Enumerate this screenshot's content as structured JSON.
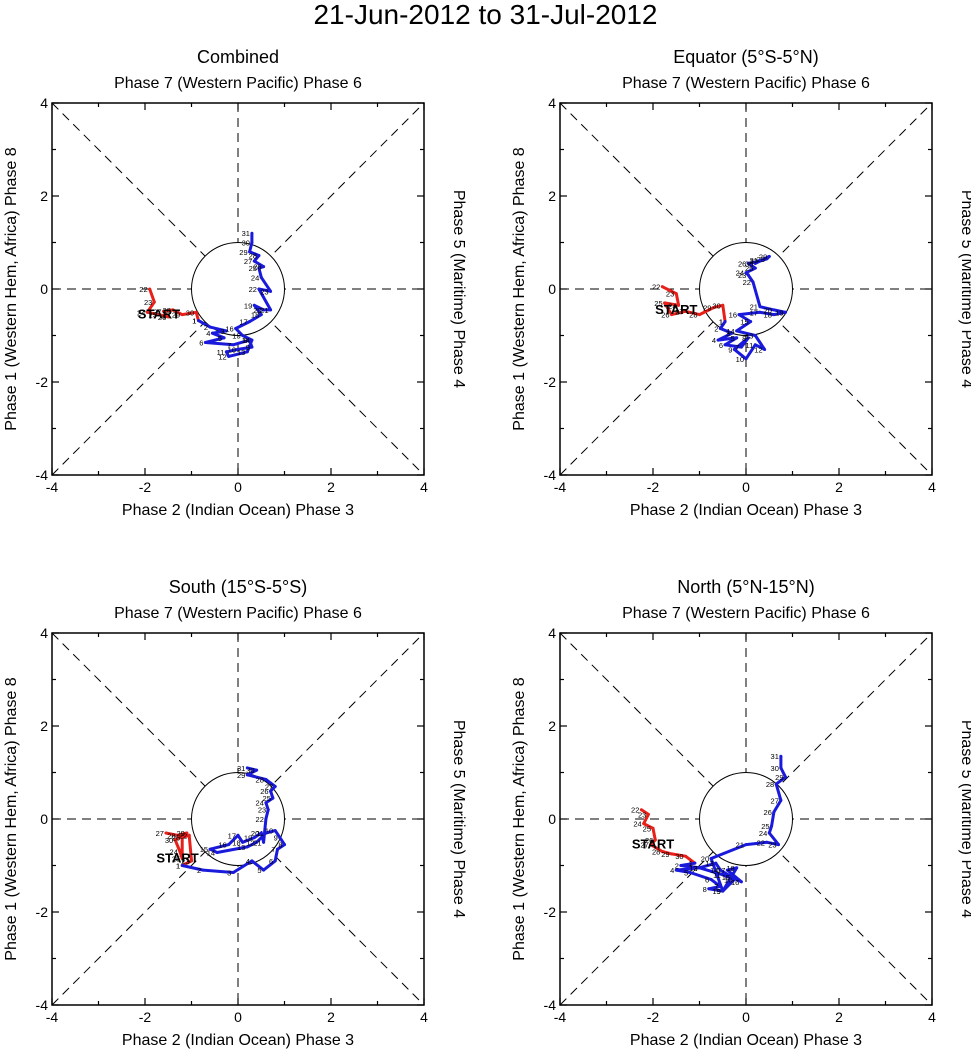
{
  "title": "21-Jun-2012 to 31-Jul-2012",
  "axis_labels": {
    "top": "Phase 7 (Western Pacific) Phase 6",
    "bottom": "Phase 2 (Indian Ocean) Phase 3",
    "left": "Phase 1 (Western Hem, Africa) Phase 8",
    "right": "Phase 5 (Maritime) Phase 4"
  },
  "start_label": "START",
  "colors": {
    "june": "#e8201a",
    "july": "#1a1adc",
    "axes": "#000000"
  },
  "chart_data": [
    {
      "type": "line",
      "title": "Combined",
      "xlim": [
        -4,
        4
      ],
      "ylim": [
        -4,
        4
      ],
      "xticks": [
        "-4",
        "-2",
        "0",
        "2",
        "4"
      ],
      "yticks": [
        "-4",
        "-2",
        "0",
        "2",
        "4"
      ],
      "start_point": [
        -1.7,
        -0.55
      ],
      "series": [
        {
          "name": "June",
          "color": "#e8201a",
          "points": [
            [
              -1.9,
              0.0
            ],
            [
              -1.8,
              -0.28
            ],
            [
              -1.95,
              -0.5
            ],
            [
              -1.7,
              -0.55
            ],
            [
              -1.5,
              -0.6
            ],
            [
              -1.6,
              -0.48
            ],
            [
              -1.4,
              -0.45
            ],
            [
              -1.2,
              -0.55
            ],
            [
              -0.9,
              -0.5
            ],
            [
              -0.85,
              -0.68
            ]
          ],
          "labels": [
            "22",
            "23",
            "24",
            "25",
            "26",
            "27",
            "28",
            "29",
            "30",
            "1"
          ]
        },
        {
          "name": "July",
          "color": "#1a1adc",
          "points": [
            [
              -0.85,
              -0.68
            ],
            [
              -0.6,
              -0.82
            ],
            [
              -0.25,
              -0.9
            ],
            [
              -0.55,
              -0.95
            ],
            [
              -0.3,
              -1.05
            ],
            [
              -0.7,
              -1.15
            ],
            [
              -0.1,
              -1.2
            ],
            [
              0.25,
              -1.1
            ],
            [
              0.3,
              -1.25
            ],
            [
              0.0,
              -1.3
            ],
            [
              -0.25,
              -1.35
            ],
            [
              -0.2,
              -1.45
            ],
            [
              0.2,
              -1.35
            ],
            [
              0.3,
              -1.1
            ],
            [
              0.1,
              -1.0
            ],
            [
              -0.05,
              -0.85
            ],
            [
              0.25,
              -0.7
            ],
            [
              0.5,
              -0.55
            ],
            [
              0.35,
              -0.35
            ],
            [
              0.55,
              -0.45
            ],
            [
              0.7,
              -0.45
            ],
            [
              0.45,
              0.0
            ],
            [
              0.7,
              -0.05
            ],
            [
              0.5,
              0.25
            ],
            [
              0.45,
              0.45
            ],
            [
              0.55,
              0.48
            ],
            [
              0.35,
              0.6
            ],
            [
              0.45,
              0.72
            ],
            [
              0.25,
              0.8
            ],
            [
              0.3,
              1.0
            ],
            [
              0.3,
              1.2
            ]
          ],
          "labels": [
            "1",
            "2",
            "3",
            "4",
            "5",
            "6",
            "7",
            "8",
            "9",
            "10",
            "11",
            "12",
            "13",
            "14",
            "15",
            "16",
            "17",
            "18",
            "19",
            "20",
            "21",
            "22",
            "23",
            "24",
            "25",
            "26",
            "27",
            "28",
            "29",
            "30",
            "31"
          ]
        }
      ]
    },
    {
      "type": "line",
      "title": "Equator (5°S-5°N)",
      "xlim": [
        -4,
        4
      ],
      "ylim": [
        -4,
        4
      ],
      "xticks": [
        "-4",
        "-2",
        "0",
        "2",
        "4"
      ],
      "yticks": [
        "-4",
        "-2",
        "0",
        "2",
        "4"
      ],
      "start_point": [
        -1.5,
        -0.45
      ],
      "series": [
        {
          "name": "June",
          "color": "#e8201a",
          "points": [
            [
              -1.8,
              0.05
            ],
            [
              -1.5,
              -0.1
            ],
            [
              -1.45,
              -0.35
            ],
            [
              -1.75,
              -0.3
            ],
            [
              -1.6,
              -0.55
            ],
            [
              -1.3,
              -0.48
            ],
            [
              -1.0,
              -0.55
            ],
            [
              -0.7,
              -0.4
            ],
            [
              -0.5,
              -0.35
            ],
            [
              -0.45,
              -0.7
            ]
          ],
          "labels": [
            "22",
            "23",
            "24",
            "25",
            "26",
            "27",
            "28",
            "29",
            "30",
            "1"
          ]
        },
        {
          "name": "July",
          "color": "#1a1adc",
          "points": [
            [
              -0.45,
              -0.7
            ],
            [
              -0.55,
              -0.85
            ],
            [
              -0.3,
              -0.95
            ],
            [
              -0.6,
              -1.1
            ],
            [
              -0.2,
              -1.05
            ],
            [
              -0.45,
              -1.2
            ],
            [
              -0.1,
              -1.25
            ],
            [
              0.05,
              -1.05
            ],
            [
              -0.25,
              -1.3
            ],
            [
              0.0,
              -1.5
            ],
            [
              0.2,
              -1.2
            ],
            [
              0.4,
              -1.3
            ],
            [
              0.2,
              -1.0
            ],
            [
              -0.2,
              -0.9
            ],
            [
              0.1,
              -0.7
            ],
            [
              -0.15,
              -0.55
            ],
            [
              0.3,
              -0.5
            ],
            [
              0.6,
              -0.55
            ],
            [
              0.85,
              -0.5
            ],
            [
              0.6,
              -0.45
            ],
            [
              0.3,
              -0.38
            ],
            [
              0.15,
              0.15
            ],
            [
              0.05,
              0.3
            ],
            [
              0.0,
              0.35
            ],
            [
              0.2,
              0.45
            ],
            [
              0.05,
              0.55
            ],
            [
              0.3,
              0.6
            ],
            [
              0.45,
              0.65
            ],
            [
              0.5,
              0.7
            ],
            [
              0.2,
              0.55
            ],
            [
              0.3,
              0.62
            ]
          ],
          "labels": [
            "1",
            "2",
            "3",
            "4",
            "5",
            "6",
            "7",
            "8",
            "9",
            "10",
            "11",
            "12",
            "13",
            "14",
            "15",
            "16",
            "17",
            "18",
            "19",
            "20",
            "21",
            "22",
            "23",
            "24",
            "25",
            "26",
            "27",
            "28",
            "29",
            "30",
            "31"
          ]
        }
      ]
    },
    {
      "type": "line",
      "title": "South (15°S-5°S)",
      "xlim": [
        -4,
        4
      ],
      "ylim": [
        -4,
        4
      ],
      "xticks": [
        "-4",
        "-2",
        "0",
        "2",
        "4"
      ],
      "yticks": [
        "-4",
        "-2",
        "0",
        "2",
        "4"
      ],
      "start_point": [
        -1.3,
        -0.85
      ],
      "series": [
        {
          "name": "June",
          "color": "#e8201a",
          "points": [
            [
              -1.55,
              -0.3
            ],
            [
              -1.3,
              -0.35
            ],
            [
              -1.1,
              -0.3
            ],
            [
              -1.35,
              -0.45
            ],
            [
              -1.25,
              -0.7
            ],
            [
              -1.2,
              -0.85
            ],
            [
              -1.2,
              -0.4
            ],
            [
              -1.05,
              -0.35
            ],
            [
              -1.0,
              -0.9
            ],
            [
              -1.2,
              -1.0
            ]
          ],
          "labels": [
            "27",
            "28",
            "29",
            "30",
            "24",
            "25",
            "26",
            "22",
            "23",
            "1"
          ]
        },
        {
          "name": "July",
          "color": "#1a1adc",
          "points": [
            [
              -1.2,
              -1.0
            ],
            [
              -0.75,
              -1.1
            ],
            [
              -0.1,
              -1.15
            ],
            [
              0.3,
              -0.9
            ],
            [
              0.55,
              -1.1
            ],
            [
              0.8,
              -0.9
            ],
            [
              0.85,
              -0.65
            ],
            [
              1.0,
              -0.55
            ],
            [
              0.9,
              -0.4
            ],
            [
              0.8,
              -0.25
            ],
            [
              0.6,
              -0.3
            ],
            [
              0.4,
              -0.5
            ],
            [
              0.2,
              -0.6
            ],
            [
              -0.45,
              -0.72
            ],
            [
              -0.6,
              -0.65
            ],
            [
              -0.2,
              -0.55
            ],
            [
              0.0,
              -0.35
            ],
            [
              0.1,
              -0.5
            ],
            [
              0.35,
              -0.4
            ],
            [
              0.5,
              -0.3
            ],
            [
              0.55,
              -0.5
            ],
            [
              0.6,
              0.0
            ],
            [
              0.65,
              0.2
            ],
            [
              0.6,
              0.35
            ],
            [
              0.75,
              0.45
            ],
            [
              0.7,
              0.6
            ],
            [
              0.8,
              0.7
            ],
            [
              0.6,
              0.85
            ],
            [
              0.2,
              0.95
            ],
            [
              0.4,
              1.05
            ],
            [
              0.2,
              1.1
            ]
          ],
          "labels": [
            "1",
            "2",
            "3",
            "4",
            "5",
            "6",
            "7",
            "8",
            "9",
            "10",
            "11",
            "12",
            "13",
            "14",
            "15",
            "16",
            "17",
            "18",
            "19",
            "20",
            "21",
            "22",
            "23",
            "24",
            "25",
            "26",
            "27",
            "28",
            "29",
            "30",
            "31"
          ]
        }
      ]
    },
    {
      "type": "line",
      "title": "North (5°N-15°N)",
      "xlim": [
        -4,
        4
      ],
      "ylim": [
        -4,
        4
      ],
      "xticks": [
        "-4",
        "-2",
        "0",
        "2",
        "4"
      ],
      "yticks": [
        "-4",
        "-2",
        "0",
        "2",
        "4"
      ],
      "start_point": [
        -2.0,
        -0.55
      ],
      "series": [
        {
          "name": "June",
          "color": "#e8201a",
          "points": [
            [
              -2.25,
              0.2
            ],
            [
              -2.1,
              0.1
            ],
            [
              -2.2,
              -0.1
            ],
            [
              -2.0,
              -0.2
            ],
            [
              -1.95,
              -0.45
            ],
            [
              -2.05,
              -0.55
            ],
            [
              -1.8,
              -0.7
            ],
            [
              -1.6,
              -0.75
            ],
            [
              -1.3,
              -0.8
            ],
            [
              -1.1,
              -0.95
            ]
          ],
          "labels": [
            "22",
            "23",
            "24",
            "25",
            "26",
            "27",
            "28",
            "29",
            "30",
            "1"
          ]
        },
        {
          "name": "July",
          "color": "#1a1adc",
          "points": [
            [
              -1.1,
              -0.95
            ],
            [
              -1.4,
              -1.0
            ],
            [
              -1.0,
              -1.05
            ],
            [
              -1.5,
              -1.1
            ],
            [
              -1.2,
              -1.15
            ],
            [
              -0.75,
              -1.3
            ],
            [
              -0.55,
              -1.45
            ],
            [
              -0.8,
              -1.5
            ],
            [
              -0.5,
              -1.55
            ],
            [
              -0.25,
              -1.3
            ],
            [
              -0.5,
              -1.2
            ],
            [
              -1.0,
              -1.05
            ],
            [
              -0.65,
              -0.95
            ],
            [
              -0.55,
              -1.1
            ],
            [
              -0.3,
              -1.25
            ],
            [
              -0.1,
              -1.35
            ],
            [
              -0.4,
              -1.1
            ],
            [
              -0.2,
              -1.05
            ],
            [
              -0.5,
              -1.55
            ],
            [
              -0.75,
              -0.85
            ],
            [
              0.0,
              -0.55
            ],
            [
              0.45,
              -0.5
            ],
            [
              0.7,
              -0.55
            ],
            [
              0.5,
              -0.3
            ],
            [
              0.55,
              -0.15
            ],
            [
              0.6,
              0.15
            ],
            [
              0.75,
              0.4
            ],
            [
              0.65,
              0.75
            ],
            [
              0.85,
              0.9
            ],
            [
              0.75,
              1.1
            ],
            [
              0.75,
              1.35
            ]
          ],
          "labels": [
            "1",
            "2",
            "3",
            "4",
            "5",
            "6",
            "7",
            "8",
            "9",
            "10",
            "11",
            "12",
            "13",
            "14",
            "15",
            "16",
            "17",
            "18",
            "19",
            "20",
            "21",
            "22",
            "23",
            "24",
            "25",
            "26",
            "27",
            "28",
            "29",
            "30",
            "31"
          ]
        }
      ]
    }
  ]
}
